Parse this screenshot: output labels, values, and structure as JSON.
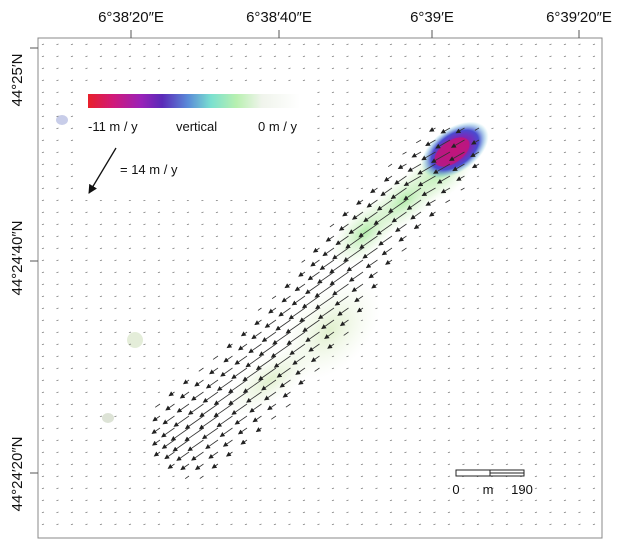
{
  "map": {
    "lon_ticks": [
      "6°38′20″E",
      "6°38′40″E",
      "6°39′E",
      "6°39′20″E"
    ],
    "lat_ticks": [
      "44°25′N",
      "44°24′40″N",
      "44°24′20″N"
    ]
  },
  "legend": {
    "min_label": "-11 m / y",
    "mid_label": "vertical",
    "max_label": "0 m / y",
    "vector_label": "= 14 m / y",
    "colors": [
      "#e8202a",
      "#d01a7a",
      "#9a22b8",
      "#5a2ab8",
      "#5a8ad8",
      "#7ae0d0",
      "#b8f0b0",
      "#f0f4ec",
      "#ffffff"
    ]
  },
  "scale_bar": {
    "zero_label": "0",
    "unit_label": "m",
    "max_label": "190"
  }
}
